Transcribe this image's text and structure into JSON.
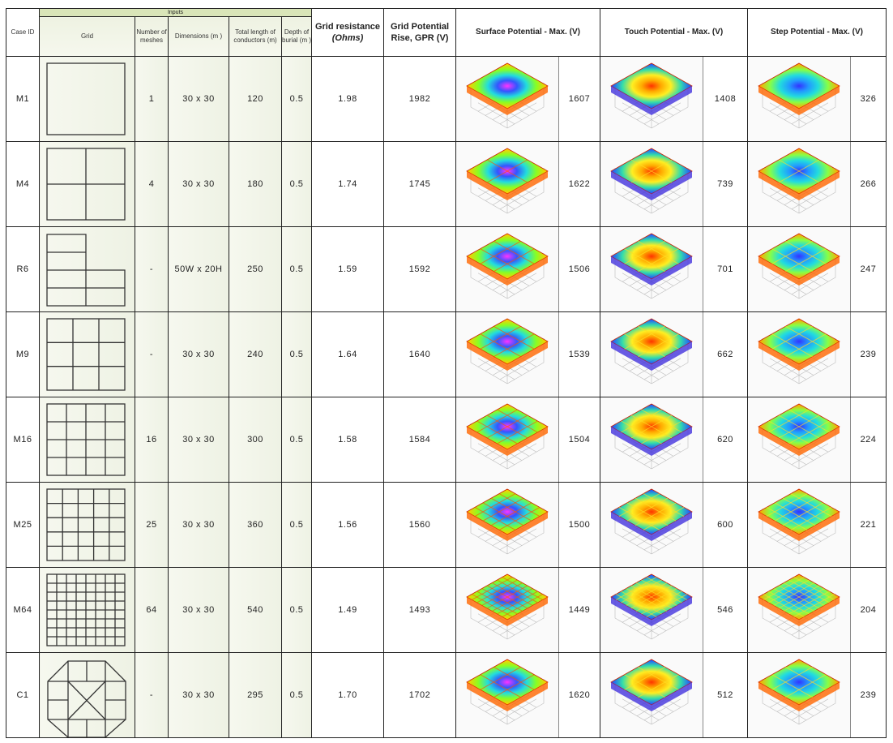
{
  "header": {
    "inputs": "Inputs",
    "case_id": "Case ID",
    "grid": "Grid",
    "meshes": "Number of meshes",
    "dimensions": "Dimensions (m )",
    "total_length": "Total length of conductors (m)",
    "depth": "Depth of burial (m )",
    "resistance_1": "Grid resistance",
    "resistance_2": "(Ohms)",
    "gpr_1": "Grid Potential",
    "gpr_2": "Rise, GPR (V)",
    "surface": "Surface Potential - Max. (V)",
    "touch": "Touch Potential - Max. (V)",
    "step": "Step Potential - Max. (V)"
  },
  "rows": [
    {
      "id": "M1",
      "grid_shape": "square-1",
      "meshes": "1",
      "dimensions": "30 x 30",
      "length": "120",
      "depth": "0.5",
      "resistance": "1.98",
      "gpr": "1982",
      "surface": "1607",
      "touch": "1408",
      "step": "326"
    },
    {
      "id": "M4",
      "grid_shape": "square-2",
      "meshes": "4",
      "dimensions": "30 x 30",
      "length": "180",
      "depth": "0.5",
      "resistance": "1.74",
      "gpr": "1745",
      "surface": "1622",
      "touch": "739",
      "step": "266"
    },
    {
      "id": "R6",
      "grid_shape": "l-shape",
      "meshes": "-",
      "dimensions": "50W x 20H",
      "length": "250",
      "depth": "0.5",
      "resistance": "1.59",
      "gpr": "1592",
      "surface": "1506",
      "touch": "701",
      "step": "247"
    },
    {
      "id": "M9",
      "grid_shape": "square-3",
      "meshes": "-",
      "dimensions": "30 x 30",
      "length": "240",
      "depth": "0.5",
      "resistance": "1.64",
      "gpr": "1640",
      "surface": "1539",
      "touch": "662",
      "step": "239"
    },
    {
      "id": "M16",
      "grid_shape": "square-4",
      "meshes": "16",
      "dimensions": "30 x 30",
      "length": "300",
      "depth": "0.5",
      "resistance": "1.58",
      "gpr": "1584",
      "surface": "1504",
      "touch": "620",
      "step": "224"
    },
    {
      "id": "M25",
      "grid_shape": "square-5",
      "meshes": "25",
      "dimensions": "30 x 30",
      "length": "360",
      "depth": "0.5",
      "resistance": "1.56",
      "gpr": "1560",
      "surface": "1500",
      "touch": "600",
      "step": "221"
    },
    {
      "id": "M64",
      "grid_shape": "square-8",
      "meshes": "64",
      "dimensions": "30 x 30",
      "length": "540",
      "depth": "0.5",
      "resistance": "1.49",
      "gpr": "1493",
      "surface": "1449",
      "touch": "546",
      "step": "204"
    },
    {
      "id": "C1",
      "grid_shape": "octagon",
      "meshes": "-",
      "dimensions": "30 x 30",
      "length": "295",
      "depth": "0.5",
      "resistance": "1.70",
      "gpr": "1702",
      "surface": "1620",
      "touch": "512",
      "step": "239"
    }
  ]
}
